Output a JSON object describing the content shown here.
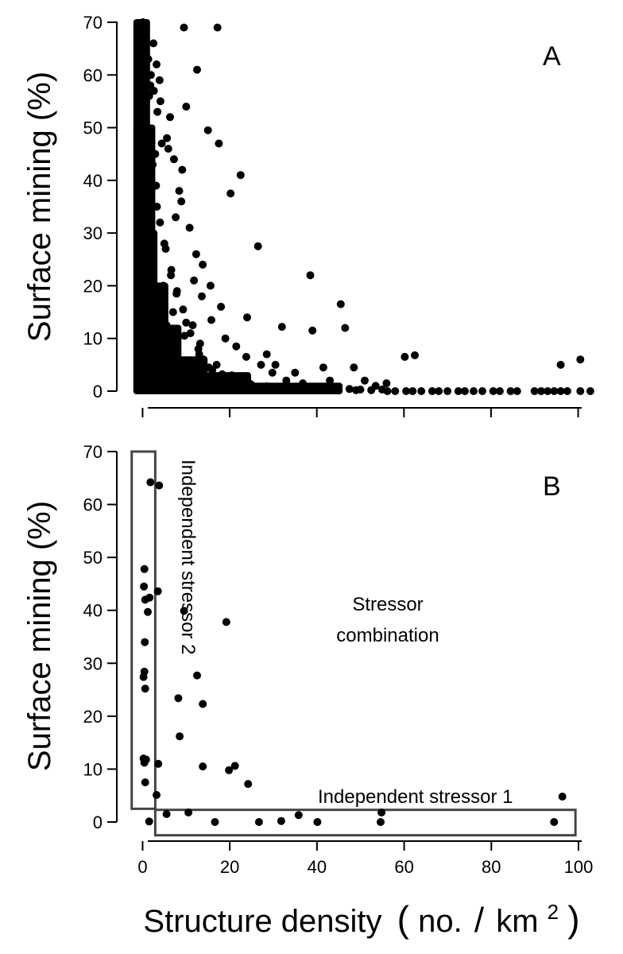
{
  "x_axis": {
    "label": "Structure density",
    "unit_open": "(",
    "unit_main": "no.",
    "unit_slash": "/",
    "unit_km": "km",
    "unit_sup": "2",
    "unit_close": ")",
    "ticks": [
      "0",
      "20",
      "40",
      "60",
      "80",
      "100"
    ]
  },
  "chart_data": [
    {
      "type": "scatter",
      "panel": "A",
      "title": "",
      "ylabel": "Surface mining (%)",
      "xlabel": "Structure density (no./km²)",
      "xlim": [
        -3,
        103
      ],
      "ylim": [
        0,
        70
      ],
      "yticks": [
        "0",
        "10",
        "20",
        "30",
        "40",
        "50",
        "60",
        "70"
      ],
      "x_ticks_labeled": false,
      "points": {
        "x": [
          0.5,
          1.2,
          2.4,
          0.8,
          3.8,
          0.3,
          4.5,
          1.6,
          2.0,
          5.2,
          6.8,
          0.4,
          3.0,
          7.5,
          1.1,
          8.2,
          9.0,
          2.7,
          4.2,
          10.5,
          12.0,
          0.9,
          3.6,
          6.0,
          14.5,
          1.4,
          5.5,
          8.8,
          11.2,
          16.5,
          2.2,
          7.0,
          13.0,
          18.3,
          0.6,
          4.8,
          9.6,
          15.2,
          19.5,
          22.0,
          3.3,
          6.5,
          10.0,
          12.8,
          17.0,
          20.5,
          24.5,
          26.0,
          1.0,
          2.9,
          5.0,
          7.8,
          11.0,
          14.0,
          16.0,
          21.0,
          25.0,
          28.5,
          31.0,
          33.5,
          36.0,
          38.5,
          40.0,
          42.5,
          45.0,
          47.5,
          50.0,
          52.5,
          55.0,
          56.2,
          58.0,
          60.5,
          62.0,
          64.0,
          66.5,
          68.0,
          70.0,
          72.5,
          74.0,
          76.0,
          78.0,
          80.5,
          82.0,
          84.5,
          86.0,
          90.0,
          91.5,
          93.0,
          94.5,
          96.0,
          97.5,
          100.5,
          102.8,
          9.5,
          17.2,
          10.0,
          12.5,
          15.0,
          17.5,
          20.2,
          22.5,
          38.5,
          45.5,
          46.5,
          39.0,
          32.0,
          28.5,
          24.0,
          26.5,
          30.5,
          35.0,
          41.5,
          43.0,
          48.5,
          51.0,
          53.5,
          56.0,
          60.2,
          62.5,
          96.0,
          100.5,
          1.8,
          3.2,
          4.1,
          5.6,
          6.3,
          7.2,
          8.4,
          9.1,
          2.5,
          3.9,
          5.9,
          7.6,
          8.9,
          10.8,
          12.3,
          13.8,
          15.6,
          18.0,
          11.8,
          13.6,
          15.8,
          19.0,
          21.5,
          23.8,
          27.2,
          29.8,
          33.0,
          36.8,
          0.2,
          0.7,
          1.3,
          1.9,
          2.6,
          3.4,
          4.4,
          0.1,
          0.5,
          1.5,
          2.3,
          3.1,
          4.0,
          5.3,
          6.6,
          7.9,
          9.3,
          11.5,
          13.2,
          0.3,
          1.0,
          1.7,
          2.8,
          4.6,
          6.2,
          8.1,
          10.3,
          12.9,
          14.8,
          16.9,
          19.8,
          22.8,
          25.8,
          30.2,
          34.5,
          37.5,
          41.0,
          44.0,
          49.0
        ],
        "y": [
          0.8,
          1.5,
          0.5,
          2.0,
          1.0,
          3.5,
          0.3,
          5.0,
          2.5,
          0.6,
          1.8,
          8.0,
          4.0,
          0.9,
          12.0,
          2.2,
          0.4,
          9.5,
          6.5,
          1.2,
          3.0,
          18.0,
          14.0,
          8.5,
          0.7,
          25.0,
          12.5,
          5.5,
          2.8,
          1.5,
          30.0,
          15.0,
          7.0,
          3.2,
          40.0,
          20.0,
          10.5,
          4.5,
          2.0,
          1.0,
          35.0,
          22.0,
          13.0,
          8.0,
          5.0,
          3.0,
          1.5,
          0.8,
          50.0,
          45.0,
          28.0,
          18.5,
          11.0,
          6.0,
          4.0,
          2.5,
          1.2,
          0.9,
          0.6,
          0.8,
          0.5,
          0.4,
          0.3,
          0.6,
          0.2,
          0.4,
          0.3,
          0.2,
          0.3,
          0.0,
          0.0,
          0.0,
          0.0,
          0.0,
          0.0,
          0.0,
          0.0,
          0.0,
          0.0,
          0.0,
          0.0,
          0.0,
          0.0,
          0.0,
          0.0,
          0.0,
          0.0,
          0.0,
          0.0,
          0.0,
          0.0,
          0.0,
          0.0,
          69.0,
          69.0,
          54.0,
          61.0,
          49.5,
          47.0,
          37.5,
          41.0,
          22.0,
          16.5,
          12.0,
          11.5,
          12.2,
          7.0,
          14.0,
          27.5,
          5.0,
          3.5,
          4.5,
          2.0,
          4.5,
          2.0,
          1.0,
          1.5,
          6.5,
          6.8,
          5.0,
          6.0,
          58.0,
          62.0,
          55.0,
          48.0,
          52.0,
          44.0,
          38.0,
          42.0,
          66.0,
          59.0,
          46.0,
          33.0,
          36.0,
          31.0,
          26.0,
          24.0,
          20.0,
          16.0,
          21.0,
          18.0,
          13.5,
          10.0,
          8.5,
          6.5,
          5.0,
          3.5,
          2.0,
          1.5,
          68.0,
          65.0,
          63.0,
          60.0,
          57.0,
          53.0,
          47.0,
          70.0,
          67.0,
          56.0,
          43.0,
          39.0,
          32.0,
          27.0,
          23.0,
          19.0,
          15.5,
          12.5,
          9.0,
          0.5,
          0.2,
          0.6,
          0.3,
          0.4,
          0.3,
          0.5,
          0.4,
          0.3,
          0.5,
          0.2,
          0.4,
          0.6,
          0.3,
          0.2,
          0.3,
          0.4,
          0.2,
          0.5,
          0.2
        ]
      },
      "dense_bands": [
        {
          "x_range": [
            -1.2,
            0.8
          ],
          "y_range": [
            0,
            70
          ]
        },
        {
          "x_range": [
            -1.2,
            2.0
          ],
          "y_range": [
            0,
            50
          ]
        },
        {
          "x_range": [
            0,
            2.5
          ],
          "y_range": [
            0,
            30
          ]
        },
        {
          "x_range": [
            0,
            5
          ],
          "y_range": [
            0,
            20
          ]
        },
        {
          "x_range": [
            0,
            8
          ],
          "y_range": [
            0,
            12
          ]
        },
        {
          "x_range": [
            0,
            14
          ],
          "y_range": [
            0,
            6
          ]
        },
        {
          "x_range": [
            0,
            24
          ],
          "y_range": [
            0,
            3
          ]
        },
        {
          "x_range": [
            0,
            45
          ],
          "y_range": [
            0,
            1
          ]
        }
      ]
    },
    {
      "type": "scatter",
      "panel": "B",
      "title": "",
      "ylabel": "Surface mining (%)",
      "xlabel": "Structure density (no./km²)",
      "xlim": [
        -3,
        100
      ],
      "ylim": [
        0,
        70
      ],
      "yticks": [
        "0",
        "10",
        "20",
        "30",
        "40",
        "50",
        "60",
        "70"
      ],
      "points": {
        "x": [
          1.8,
          3.8,
          0.4,
          0.3,
          0.6,
          1.2,
          1.6,
          3.5,
          0.5,
          0.4,
          0.2,
          0.6,
          0.4,
          0.2,
          0.8,
          0.6,
          3.6,
          3.2,
          1.5,
          5.5,
          10.5,
          16.6,
          26.7,
          31.8,
          35.8,
          40.1,
          54.6,
          54.8,
          94.4,
          96.3,
          9.5,
          19.2,
          12.5,
          13.8,
          8.2,
          8.5,
          13.8,
          19.8,
          21.2,
          24.2
        ],
        "y": [
          64.2,
          63.6,
          47.8,
          44.5,
          42.0,
          39.7,
          42.4,
          43.6,
          34.0,
          28.4,
          27.4,
          25.2,
          11.2,
          12.0,
          11.8,
          7.5,
          11.0,
          5.1,
          0.1,
          1.5,
          1.8,
          0.0,
          0.0,
          0.2,
          1.3,
          0.0,
          0.0,
          1.8,
          0.0,
          4.8,
          39.9,
          37.8,
          27.7,
          22.3,
          23.4,
          16.2,
          10.5,
          9.8,
          10.6,
          7.2
        ]
      },
      "regions": [
        {
          "name": "Independent stressor 2",
          "x_range": [
            -2.5,
            2.9
          ],
          "y_range": [
            2.5,
            70
          ]
        },
        {
          "name": "Independent stressor 1",
          "x_range": [
            2.9,
            99.3
          ],
          "y_range": [
            -2.5,
            2.3
          ]
        },
        {
          "name": "Stressor combination"
        }
      ],
      "annotations": {
        "independent_stressor_2": "Independent stressor 2",
        "independent_stressor_1": "Independent stressor 1",
        "combination_line1": "Stressor",
        "combination_line2": "combination"
      }
    }
  ]
}
